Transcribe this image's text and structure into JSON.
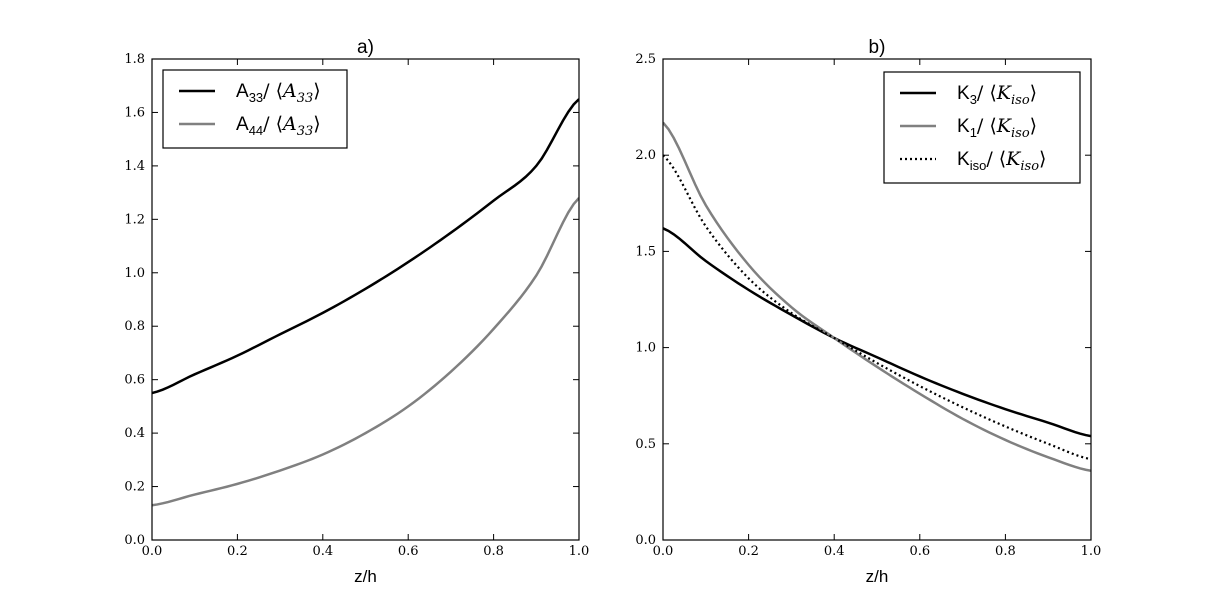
{
  "chart_data": [
    {
      "type": "line",
      "title": "a)",
      "xlabel": "z/h",
      "ylabel": "",
      "xlim": [
        0.0,
        1.0
      ],
      "ylim": [
        0.0,
        1.8
      ],
      "xticks": [
        "0.0",
        "0.2",
        "0.4",
        "0.6",
        "0.8",
        "1.0"
      ],
      "yticks": [
        "0.0",
        "0.2",
        "0.4",
        "0.6",
        "0.8",
        "1.0",
        "1.2",
        "1.4",
        "1.6",
        "1.8"
      ],
      "grid": false,
      "legend_position": "top-left",
      "x": [
        0.0,
        0.1,
        0.2,
        0.3,
        0.4,
        0.5,
        0.6,
        0.7,
        0.8,
        0.9,
        1.0
      ],
      "series": [
        {
          "name": "A33/⟨A33⟩",
          "name_base": "A",
          "name_sub": "33",
          "name_denominator": "A",
          "name_denominator_sub": "33",
          "color": "#000000",
          "dash": "solid",
          "values": [
            0.55,
            0.62,
            0.69,
            0.77,
            0.85,
            0.94,
            1.04,
            1.15,
            1.27,
            1.4,
            1.65
          ]
        },
        {
          "name": "A44/⟨A33⟩",
          "name_base": "A",
          "name_sub": "44",
          "name_denominator": "A",
          "name_denominator_sub": "33",
          "color": "#808080",
          "dash": "solid",
          "values": [
            0.13,
            0.17,
            0.21,
            0.26,
            0.32,
            0.4,
            0.5,
            0.63,
            0.79,
            0.99,
            1.28
          ]
        }
      ]
    },
    {
      "type": "line",
      "title": "b)",
      "xlabel": "z/h",
      "ylabel": "",
      "xlim": [
        0.0,
        1.0
      ],
      "ylim": [
        0.0,
        2.5
      ],
      "xticks": [
        "0.0",
        "0.2",
        "0.4",
        "0.6",
        "0.8",
        "1.0"
      ],
      "yticks": [
        "0.0",
        "0.5",
        "1.0",
        "1.5",
        "2.0",
        "2.5"
      ],
      "grid": false,
      "legend_position": "top-right",
      "x": [
        0.0,
        0.1,
        0.2,
        0.3,
        0.4,
        0.5,
        0.6,
        0.7,
        0.8,
        0.9,
        1.0
      ],
      "series": [
        {
          "name": "K3/⟨Kiso⟩",
          "name_base": "K",
          "name_sub": "3",
          "name_denominator": "K",
          "name_denominator_sub": "iso",
          "color": "#000000",
          "dash": "solid",
          "values": [
            1.62,
            1.45,
            1.3,
            1.17,
            1.05,
            0.95,
            0.85,
            0.76,
            0.68,
            0.61,
            0.54
          ]
        },
        {
          "name": "K1/⟨Kiso⟩",
          "name_base": "K",
          "name_sub": "1",
          "name_denominator": "K",
          "name_denominator_sub": "iso",
          "color": "#808080",
          "dash": "solid",
          "values": [
            2.17,
            1.74,
            1.43,
            1.21,
            1.05,
            0.9,
            0.76,
            0.63,
            0.52,
            0.43,
            0.36
          ]
        },
        {
          "name": "Kiso/⟨Kiso⟩",
          "name_base": "K",
          "name_sub": "iso",
          "name_denominator": "K",
          "name_denominator_sub": "iso",
          "color": "#000000",
          "dash": "dotted",
          "values": [
            2.0,
            1.63,
            1.36,
            1.18,
            1.05,
            0.92,
            0.8,
            0.69,
            0.59,
            0.5,
            0.42
          ]
        }
      ]
    }
  ]
}
